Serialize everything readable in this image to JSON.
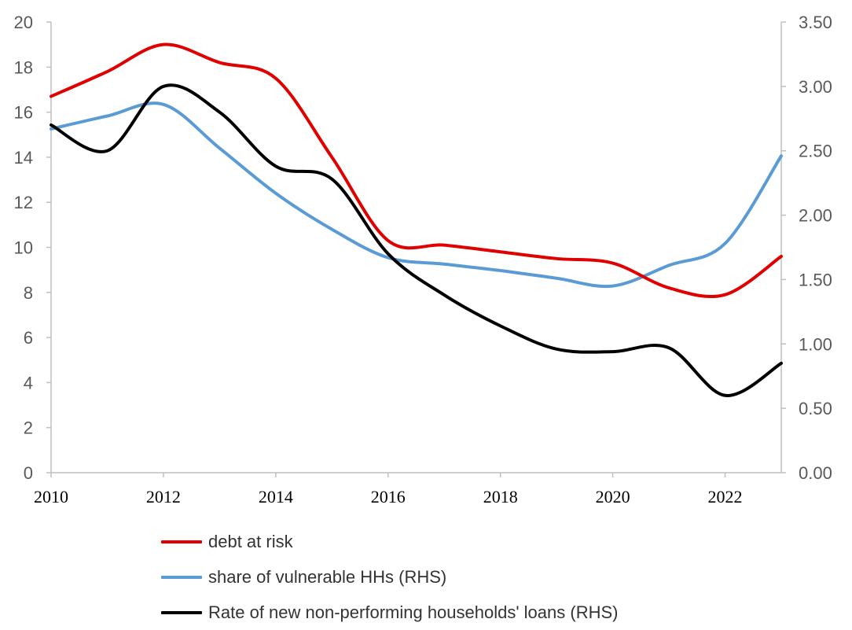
{
  "chart_data": {
    "type": "line",
    "x": [
      2010,
      2011,
      2012,
      2013,
      2014,
      2015,
      2016,
      2017,
      2018,
      2019,
      2020,
      2021,
      2022,
      2023
    ],
    "xticks": [
      "2010",
      "2012",
      "2014",
      "2016",
      "2018",
      "2020",
      "2022"
    ],
    "xlim": [
      2010,
      2023
    ],
    "ylim_left": [
      0,
      20
    ],
    "yticks_left": [
      "0",
      "2",
      "4",
      "6",
      "8",
      "10",
      "12",
      "14",
      "16",
      "18",
      "20"
    ],
    "ylim_right": [
      0,
      3.5
    ],
    "yticks_right": [
      "0.00",
      "0.50",
      "1.00",
      "1.50",
      "2.00",
      "2.50",
      "3.00",
      "3.50"
    ],
    "grid": false,
    "legend_position": "bottom",
    "series": [
      {
        "name": "debt at risk",
        "axis": "left",
        "color": "#e00000",
        "values": [
          16.7,
          17.8,
          19.0,
          18.2,
          17.5,
          14.0,
          10.3,
          10.1,
          9.8,
          9.5,
          9.3,
          8.2,
          7.9,
          9.6
        ]
      },
      {
        "name": "share of vulnerable HHs (RHS)",
        "axis": "right",
        "color": "#5b9bd5",
        "values": [
          2.67,
          2.77,
          2.86,
          2.52,
          2.17,
          1.89,
          1.67,
          1.62,
          1.57,
          1.51,
          1.45,
          1.61,
          1.78,
          2.46
        ]
      },
      {
        "name": "Rate of new non-performing households' loans (RHS)",
        "axis": "right",
        "color": "#000000",
        "values": [
          2.7,
          2.5,
          3.0,
          2.8,
          2.38,
          2.28,
          1.7,
          1.38,
          1.14,
          0.96,
          0.94,
          0.97,
          0.6,
          0.85
        ]
      }
    ]
  }
}
